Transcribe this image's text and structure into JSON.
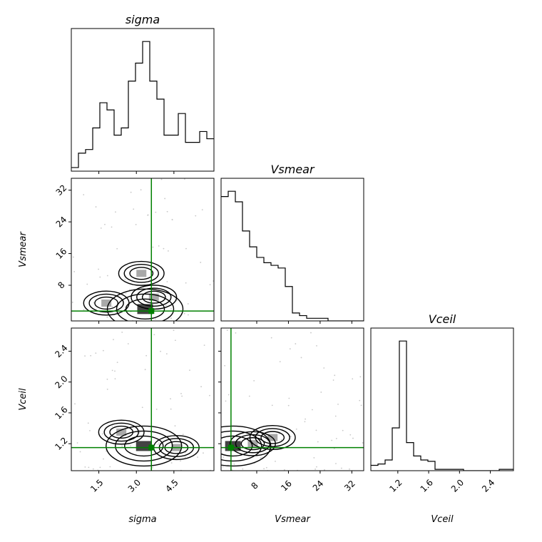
{
  "chart_data": {
    "type": "corner",
    "parameters": [
      "sigma",
      "Vsmear",
      "Vceil"
    ],
    "titles": [
      "sigma",
      "Vsmear",
      "Vceil"
    ],
    "axis_labels": [
      "sigma",
      "Vsmear",
      "Vceil"
    ],
    "truths": {
      "sigma": 3.6,
      "Vsmear": 1.5,
      "Vceil": 1.15,
      "color": "#008000"
    },
    "ranges": {
      "sigma": [
        0.4,
        6.1
      ],
      "Vsmear": [
        -1,
        35
      ],
      "Vceil": [
        0.85,
        2.7
      ]
    },
    "ticks": {
      "sigma": [
        1.5,
        3.0,
        4.5
      ],
      "Vsmear": [
        8,
        16,
        24,
        32
      ],
      "Vceil": [
        1.2,
        1.6,
        2.0,
        2.4
      ]
    },
    "tick_labels": {
      "sigma": [
        "1.5",
        "3.0",
        "4.5"
      ],
      "Vsmear": [
        "8",
        "16",
        "24",
        "32"
      ],
      "Vceil": [
        "1.2",
        "1.6",
        "2.0",
        "2.4"
      ]
    },
    "histograms": {
      "sigma": {
        "range": [
          0.4,
          6.1
        ],
        "counts": [
          1,
          5,
          6,
          12,
          19,
          17,
          10,
          12,
          25,
          30,
          36,
          25,
          20,
          10,
          10,
          16,
          8,
          8,
          11,
          9
        ]
      },
      "Vsmear": {
        "range": [
          -1,
          35
        ],
        "counts": [
          47,
          49,
          45,
          34,
          28,
          24,
          22,
          21,
          20,
          13,
          3,
          2,
          1,
          1,
          1,
          0,
          0,
          0,
          0,
          0
        ]
      },
      "Vceil": {
        "range": [
          0.85,
          2.7
        ],
        "counts": [
          4,
          5,
          8,
          32,
          97,
          21,
          11,
          8,
          7,
          1,
          1,
          1,
          1,
          0,
          0,
          0,
          0,
          0,
          1,
          1
        ]
      }
    },
    "joint_modes": [
      {
        "pair": [
          "sigma",
          "Vsmear"
        ],
        "centers": [
          [
            3.35,
            2.0
          ],
          [
            3.7,
            5.0
          ],
          [
            3.2,
            11.0
          ],
          [
            1.8,
            3.5
          ]
        ]
      },
      {
        "pair": [
          "sigma",
          "Vceil"
        ],
        "centers": [
          [
            3.3,
            1.17
          ],
          [
            2.4,
            1.35
          ],
          [
            4.6,
            1.15
          ]
        ]
      },
      {
        "pair": [
          "Vsmear",
          "Vceil"
        ],
        "centers": [
          [
            2.0,
            1.17
          ],
          [
            7.0,
            1.2
          ],
          [
            12.0,
            1.28
          ]
        ]
      }
    ],
    "line_color": "#000000"
  }
}
